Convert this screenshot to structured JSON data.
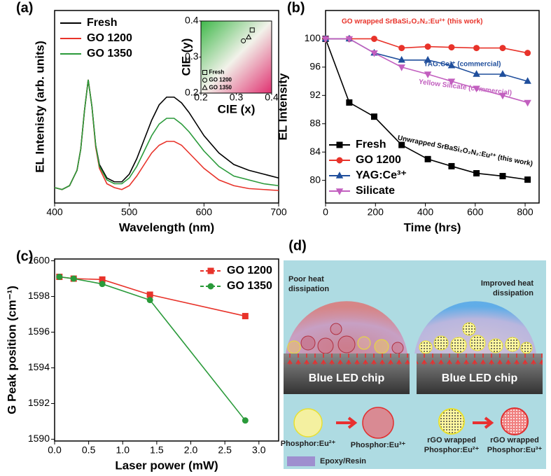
{
  "chart_data": [
    {
      "type": "line",
      "panel_label": "(a)",
      "xlabel": "Wavelength (nm)",
      "ylabel": "EL Intenisty (arb. units)",
      "x": [
        400,
        410,
        420,
        430,
        435,
        440,
        445,
        450,
        455,
        460,
        470,
        480,
        490,
        500,
        510,
        520,
        530,
        540,
        550,
        560,
        570,
        580,
        590,
        600,
        620,
        640,
        660,
        680,
        700
      ],
      "xlim": [
        400,
        700
      ],
      "ylim": [
        0,
        1
      ],
      "xticks": [
        400,
        500,
        600,
        700
      ],
      "legend": "upper left",
      "series": [
        {
          "name": "Fresh",
          "color": "#000000",
          "values": [
            0.08,
            0.07,
            0.09,
            0.17,
            0.28,
            0.48,
            0.64,
            0.5,
            0.3,
            0.2,
            0.13,
            0.11,
            0.11,
            0.15,
            0.23,
            0.33,
            0.43,
            0.51,
            0.55,
            0.55,
            0.52,
            0.47,
            0.41,
            0.35,
            0.26,
            0.2,
            0.17,
            0.15,
            0.13
          ]
        },
        {
          "name": "GO 1200",
          "color": "#e8332a",
          "values": [
            0.08,
            0.07,
            0.09,
            0.17,
            0.28,
            0.48,
            0.64,
            0.5,
            0.29,
            0.18,
            0.1,
            0.08,
            0.07,
            0.09,
            0.14,
            0.2,
            0.26,
            0.3,
            0.32,
            0.32,
            0.3,
            0.26,
            0.22,
            0.18,
            0.12,
            0.09,
            0.075,
            0.07,
            0.065
          ]
        },
        {
          "name": "GO 1350",
          "color": "#2a9a3a",
          "values": [
            0.08,
            0.07,
            0.09,
            0.17,
            0.28,
            0.48,
            0.64,
            0.5,
            0.3,
            0.19,
            0.12,
            0.1,
            0.1,
            0.13,
            0.19,
            0.27,
            0.35,
            0.41,
            0.44,
            0.44,
            0.41,
            0.37,
            0.32,
            0.27,
            0.19,
            0.14,
            0.12,
            0.1,
            0.09
          ]
        }
      ]
    },
    {
      "type": "scatter",
      "xlabel": "CIE (x)",
      "ylabel": "CIE (y)",
      "xlim": [
        0.2,
        0.4
      ],
      "ylim": [
        0.2,
        0.4
      ],
      "xticks": [
        0.2,
        0.3,
        0.4
      ],
      "yticks": [
        0.2,
        0.3,
        0.4
      ],
      "legend": "lower left",
      "series": [
        {
          "name": "Fresh",
          "color": "#000000",
          "marker": "square",
          "x": [
            0.345
          ],
          "values": [
            0.375
          ]
        },
        {
          "name": "GO 1200",
          "color": "#000000",
          "marker": "circle",
          "x": [
            0.32
          ],
          "values": [
            0.345
          ]
        },
        {
          "name": "GO 1350",
          "color": "#000000",
          "marker": "triangle",
          "x": [
            0.335
          ],
          "values": [
            0.355
          ]
        }
      ]
    },
    {
      "type": "line",
      "panel_label": "(b)",
      "xlabel": "Time (hrs)",
      "ylabel": "EL Intensity",
      "x": [
        0,
        95,
        195,
        305,
        410,
        505,
        605,
        710,
        810
      ],
      "xlim": [
        0,
        856
      ],
      "ylim": [
        76.8,
        104
      ],
      "xticks": [
        0,
        200,
        400,
        600,
        800
      ],
      "yticks": [
        80,
        84,
        88,
        92,
        96,
        100
      ],
      "legend": "lower left",
      "markers": true,
      "series": [
        {
          "name": "Fresh",
          "color": "#000000",
          "marker": "square",
          "values": [
            100,
            91,
            89,
            85,
            83,
            82,
            81,
            80.6,
            80.1
          ]
        },
        {
          "name": "GO 1200",
          "color": "#e8332a",
          "marker": "circle",
          "values": [
            100,
            100,
            100,
            98.7,
            98.9,
            98.8,
            98.7,
            98.7,
            98
          ]
        },
        {
          "name": "YAG:Ce³⁺",
          "color": "#1f4e9c",
          "marker": "triangle",
          "values": [
            100,
            100,
            98,
            97,
            97,
            96.2,
            95,
            95,
            94
          ]
        },
        {
          "name": "Silicate",
          "color": "#c25fbf",
          "marker": "triangle-down",
          "values": [
            100,
            100,
            98,
            96,
            95,
            94,
            93,
            92,
            91
          ]
        }
      ],
      "annotations": [
        "GO wrapped SrBaSi₂O₂N₂:Eu²⁺ (this work)",
        "YAG:Ce³⁺ (commercial)",
        "Yellow Silicate (commercial)",
        "Unwrapped SrBaSi₂O₂N₂:Eu²⁺ (this work)"
      ]
    },
    {
      "type": "line",
      "panel_label": "(c)",
      "xlabel": "Laser power (mW)",
      "ylabel": "G Peak position (cm⁻¹)",
      "x": [
        0.07,
        0.28,
        0.7,
        1.4,
        2.8
      ],
      "xlim": [
        0,
        3.29
      ],
      "ylim": [
        1589.9,
        1600.1
      ],
      "xticks": [
        {
          "value": 0,
          "label": "0.0"
        },
        0.5,
        {
          "value": 1,
          "label": "1.0"
        },
        1.5,
        {
          "value": 2,
          "label": "2.0"
        },
        2.5,
        {
          "value": 3,
          "label": "3.0"
        }
      ],
      "yticks": [
        1590,
        1592,
        1594,
        1596,
        1598,
        1600
      ],
      "legend": "upper right",
      "markers": true,
      "series": [
        {
          "name": "GO 1200",
          "color": "#e8332a",
          "marker": "square",
          "values": [
            1599.1,
            1599.0,
            1598.95,
            1598.1,
            1596.9
          ]
        },
        {
          "name": "GO 1350",
          "color": "#2a9a3a",
          "marker": "circle",
          "values": [
            1599.1,
            1599.0,
            1598.7,
            1597.8,
            1591.05
          ]
        }
      ]
    }
  ],
  "diagram": {
    "panel_label": "(d)",
    "left_caption": [
      "Poor heat",
      "dissipation"
    ],
    "right_caption": [
      "Improved heat",
      "dissipation"
    ],
    "chip_label": [
      "Blue LED chip",
      "Blue LED chip"
    ],
    "phosphors": [
      [
        "Phosphor:Eu²⁺"
      ],
      [
        "Phosphor:Eu³⁺"
      ],
      [
        "rGO wrapped",
        "Phosphor:Eu²⁺"
      ],
      [
        "rGO wrapped",
        "Phosphor:Eu³⁺"
      ]
    ],
    "legend": "Epoxy/Resin"
  }
}
